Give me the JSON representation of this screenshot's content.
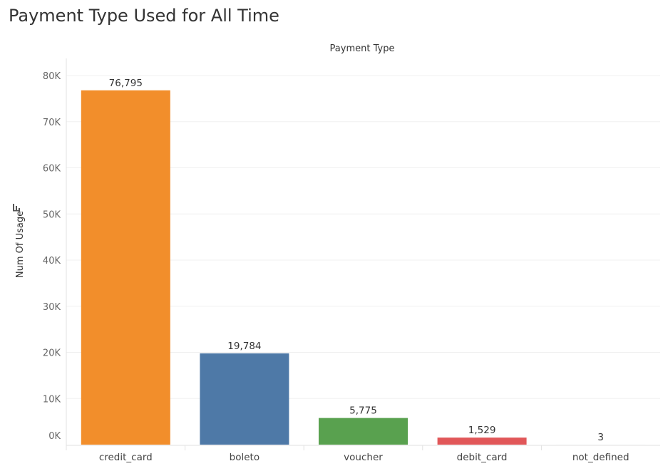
{
  "title": "Payment Type Used for All Time",
  "chart_data": {
    "type": "bar",
    "column_header": "Payment Type",
    "xlabel": "",
    "ylabel": "Num Of Usage",
    "categories": [
      "credit_card",
      "boleto",
      "voucher",
      "debit_card",
      "not_defined"
    ],
    "values": [
      76795,
      19784,
      5775,
      1529,
      3
    ],
    "data_labels": [
      "76,795",
      "19,784",
      "5,775",
      "1,529",
      "3"
    ],
    "colors": [
      "#f28e2b",
      "#4e79a7",
      "#59a14f",
      "#e15759",
      "#76b7b2"
    ],
    "ylim": [
      0,
      80000
    ],
    "yticks": [
      0,
      10000,
      20000,
      30000,
      40000,
      50000,
      60000,
      70000,
      80000
    ],
    "ytick_labels": [
      "0K",
      "10K",
      "20K",
      "30K",
      "40K",
      "50K",
      "60K",
      "70K",
      "80K"
    ],
    "grid": true,
    "legend": "none",
    "sort_icon": "sort-descending-icon"
  }
}
